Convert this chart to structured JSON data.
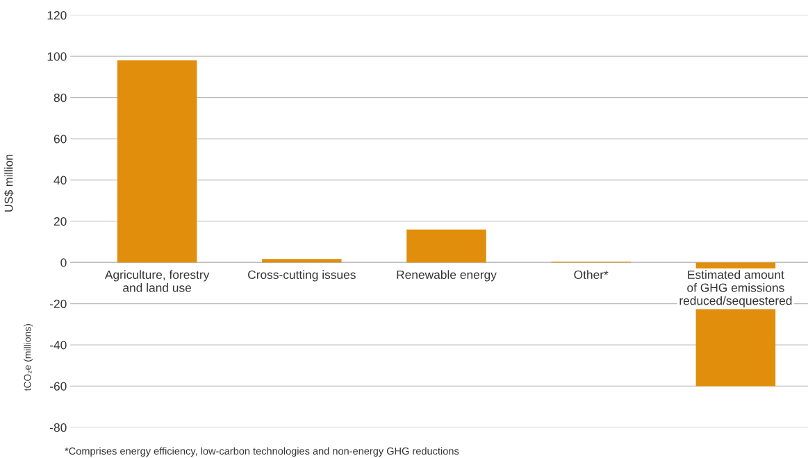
{
  "chart_data": {
    "type": "bar",
    "ylabel": "US$ million",
    "y2label": "tCO₂e (millions)",
    "categories": [
      "Agriculture, forestry\nand land use",
      "Cross-cutting issues",
      "Renewable energy",
      "Other*",
      "Estimated amount\nof GHG emissions\nreduced/sequestered"
    ],
    "values": [
      98,
      1.7,
      16,
      0.4,
      -60
    ],
    "color": "#e08e0b",
    "ylim": [
      -80,
      120
    ],
    "yticks": [
      -80,
      -60,
      -40,
      -20,
      0,
      20,
      40,
      60,
      80,
      100,
      120
    ],
    "grid": "y",
    "annotations": [
      "*Comprises energy efficiency, low-carbon technologies and non-energy GHG reductions"
    ]
  }
}
